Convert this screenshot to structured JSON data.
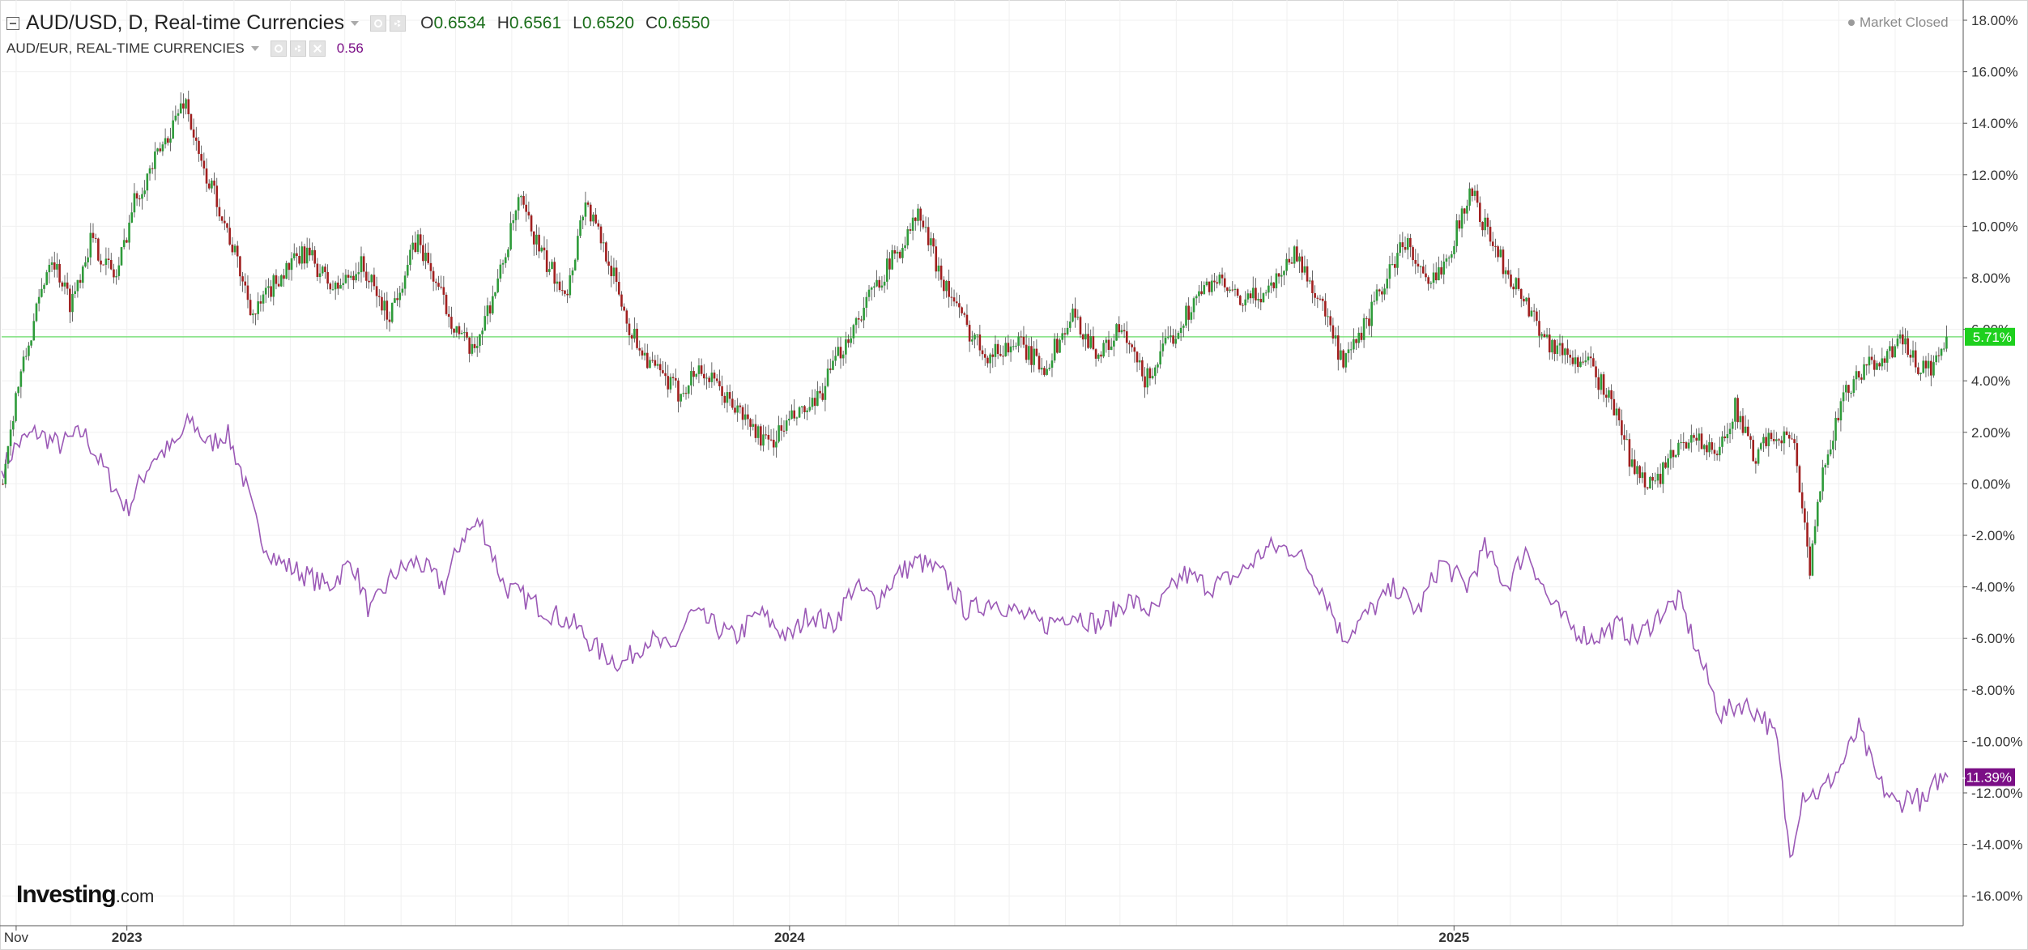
{
  "legend": {
    "main_title": "AUD/USD, D, Real-time Currencies",
    "o_label": "O",
    "o_value": "0.6534",
    "h_label": "H",
    "h_value": "0.6561",
    "l_label": "L",
    "l_value": "0.6520",
    "c_label": "C",
    "c_value": "0.6550",
    "compare_title": "AUD/EUR, REAL-TIME CURRENCIES",
    "compare_value": "0.56"
  },
  "market_status": "Market Closed",
  "logo": {
    "brand": "Investing",
    "domain": ".com"
  },
  "colors": {
    "up": "#2e9b3a",
    "down": "#a11f1f",
    "compare_line": "#9b59b6",
    "ref_line": "#7fe07f",
    "main_badge": "#1ed01e",
    "compare_badge": "#7b0f86",
    "grid": "#f0f0f0"
  },
  "icons": [
    "collapse-icon",
    "eye-icon",
    "gear-icon",
    "close-icon",
    "caret-down-icon",
    "status-dot-icon"
  ],
  "chart_data": {
    "type": "line",
    "x_axis": {
      "labels": [
        "Nov",
        "2023",
        "2024",
        "2025"
      ],
      "range": [
        "2022-10-24",
        "2025-09-30"
      ]
    },
    "y_axis": {
      "unit": "%",
      "min": -16,
      "max": 18,
      "step": 2,
      "tick_labels": [
        "18.00%",
        "16.00%",
        "14.00%",
        "12.00%",
        "10.00%",
        "8.00%",
        "6.00%",
        "4.00%",
        "2.00%",
        "0.00%",
        "-2.00%",
        "-4.00%",
        "-6.00%",
        "-8.00%",
        "-10.00%",
        "-12.00%",
        "-14.00%",
        "-16.00%"
      ]
    },
    "grid": true,
    "series": [
      {
        "name": "AUD/USD",
        "style": "candlestick",
        "last_label": "5.71%",
        "reference_line": 5.71,
        "points": [
          [
            "2022-10-24",
            0.0
          ],
          [
            "2022-11-01",
            3.5
          ],
          [
            "2022-11-10",
            6.0
          ],
          [
            "2022-11-20",
            9.0
          ],
          [
            "2022-12-01",
            7.0
          ],
          [
            "2022-12-12",
            9.5
          ],
          [
            "2022-12-26",
            8.0
          ],
          [
            "2023-01-05",
            11.0
          ],
          [
            "2023-01-20",
            13.0
          ],
          [
            "2023-02-02",
            15.0
          ],
          [
            "2023-02-10",
            12.5
          ],
          [
            "2023-02-20",
            11.0
          ],
          [
            "2023-03-01",
            9.0
          ],
          [
            "2023-03-12",
            6.5
          ],
          [
            "2023-03-25",
            8.0
          ],
          [
            "2023-04-10",
            9.0
          ],
          [
            "2023-04-25",
            7.5
          ],
          [
            "2023-05-10",
            8.5
          ],
          [
            "2023-05-25",
            6.5
          ],
          [
            "2023-06-10",
            9.5
          ],
          [
            "2023-06-28",
            6.5
          ],
          [
            "2023-07-10",
            5.0
          ],
          [
            "2023-07-25",
            8.0
          ],
          [
            "2023-08-05",
            11.0
          ],
          [
            "2023-08-20",
            8.5
          ],
          [
            "2023-09-01",
            7.5
          ],
          [
            "2023-09-10",
            11.0
          ],
          [
            "2023-09-22",
            9.0
          ],
          [
            "2023-10-05",
            6.0
          ],
          [
            "2023-10-18",
            4.5
          ],
          [
            "2023-11-01",
            3.5
          ],
          [
            "2023-11-12",
            4.5
          ],
          [
            "2023-11-25",
            3.5
          ],
          [
            "2023-12-08",
            2.5
          ],
          [
            "2023-12-20",
            1.5
          ],
          [
            "2024-01-02",
            2.5
          ],
          [
            "2024-01-15",
            3.0
          ],
          [
            "2024-01-28",
            5.0
          ],
          [
            "2024-02-08",
            6.5
          ],
          [
            "2024-02-20",
            8.0
          ],
          [
            "2024-03-05",
            9.5
          ],
          [
            "2024-03-12",
            10.5
          ],
          [
            "2024-03-25",
            8.0
          ],
          [
            "2024-04-08",
            6.0
          ],
          [
            "2024-04-20",
            5.0
          ],
          [
            "2024-05-05",
            5.5
          ],
          [
            "2024-05-20",
            4.5
          ],
          [
            "2024-06-05",
            6.5
          ],
          [
            "2024-06-20",
            5.0
          ],
          [
            "2024-07-01",
            6.0
          ],
          [
            "2024-07-15",
            4.0
          ],
          [
            "2024-07-28",
            5.5
          ],
          [
            "2024-08-10",
            7.0
          ],
          [
            "2024-08-22",
            8.0
          ],
          [
            "2024-09-05",
            7.0
          ],
          [
            "2024-09-20",
            7.5
          ],
          [
            "2024-10-05",
            9.0
          ],
          [
            "2024-10-20",
            7.0
          ],
          [
            "2024-11-01",
            4.5
          ],
          [
            "2024-11-12",
            6.0
          ],
          [
            "2024-11-25",
            8.0
          ],
          [
            "2024-12-05",
            9.5
          ],
          [
            "2024-12-18",
            7.5
          ],
          [
            "2025-01-01",
            9.5
          ],
          [
            "2025-01-10",
            11.5
          ],
          [
            "2025-01-18",
            10.0
          ],
          [
            "2025-01-28",
            8.5
          ],
          [
            "2025-02-10",
            7.0
          ],
          [
            "2025-02-22",
            5.5
          ],
          [
            "2025-03-05",
            5.0
          ],
          [
            "2025-03-18",
            4.5
          ],
          [
            "2025-03-30",
            3.0
          ],
          [
            "2025-04-10",
            0.5
          ],
          [
            "2025-04-22",
            0.0
          ],
          [
            "2025-05-01",
            1.0
          ],
          [
            "2025-05-12",
            2.0
          ],
          [
            "2025-05-25",
            1.0
          ],
          [
            "2025-06-05",
            3.0
          ],
          [
            "2025-06-15",
            1.0
          ],
          [
            "2025-06-28",
            2.0
          ],
          [
            "2025-07-08",
            1.5
          ],
          [
            "2025-07-16",
            -3.5
          ],
          [
            "2025-07-24",
            1.0
          ],
          [
            "2025-08-05",
            3.5
          ],
          [
            "2025-08-16",
            4.5
          ],
          [
            "2025-08-26",
            5.0
          ],
          [
            "2025-09-05",
            5.5
          ],
          [
            "2025-09-14",
            4.5
          ],
          [
            "2025-09-22",
            4.5
          ],
          [
            "2025-09-30",
            5.71
          ]
        ]
      },
      {
        "name": "AUD/EUR",
        "style": "line",
        "last_label": "-11.39%",
        "points": [
          [
            "2022-10-24",
            0.5
          ],
          [
            "2022-11-01",
            1.5
          ],
          [
            "2022-11-12",
            2.0
          ],
          [
            "2022-11-25",
            1.5
          ],
          [
            "2022-12-08",
            2.0
          ],
          [
            "2022-12-20",
            0.5
          ],
          [
            "2023-01-01",
            -1.0
          ],
          [
            "2023-01-15",
            1.0
          ],
          [
            "2023-01-28",
            1.5
          ],
          [
            "2023-02-05",
            2.5
          ],
          [
            "2023-02-15",
            1.5
          ],
          [
            "2023-02-25",
            2.0
          ],
          [
            "2023-03-05",
            0.5
          ],
          [
            "2023-03-15",
            -2.0
          ],
          [
            "2023-03-25",
            -3.0
          ],
          [
            "2023-04-08",
            -3.5
          ],
          [
            "2023-04-22",
            -4.0
          ],
          [
            "2023-05-05",
            -3.0
          ],
          [
            "2023-05-15",
            -5.0
          ],
          [
            "2023-05-28",
            -3.5
          ],
          [
            "2023-06-10",
            -3.0
          ],
          [
            "2023-06-25",
            -4.0
          ],
          [
            "2023-07-05",
            -2.0
          ],
          [
            "2023-07-15",
            -1.5
          ],
          [
            "2023-07-28",
            -4.0
          ],
          [
            "2023-08-10",
            -4.5
          ],
          [
            "2023-08-22",
            -5.0
          ],
          [
            "2023-09-05",
            -5.5
          ],
          [
            "2023-09-18",
            -6.5
          ],
          [
            "2023-10-01",
            -7.0
          ],
          [
            "2023-10-15",
            -6.0
          ],
          [
            "2023-10-28",
            -6.5
          ],
          [
            "2023-11-08",
            -5.0
          ],
          [
            "2023-11-20",
            -5.5
          ],
          [
            "2023-12-02",
            -6.0
          ],
          [
            "2023-12-15",
            -5.0
          ],
          [
            "2024-01-01",
            -6.0
          ],
          [
            "2024-01-12",
            -5.0
          ],
          [
            "2024-01-25",
            -5.5
          ],
          [
            "2024-02-05",
            -4.0
          ],
          [
            "2024-02-18",
            -4.5
          ],
          [
            "2024-03-01",
            -3.5
          ],
          [
            "2024-03-12",
            -3.0
          ],
          [
            "2024-03-25",
            -3.5
          ],
          [
            "2024-04-08",
            -5.0
          ],
          [
            "2024-04-22",
            -4.5
          ],
          [
            "2024-05-05",
            -5.0
          ],
          [
            "2024-05-20",
            -5.5
          ],
          [
            "2024-06-05",
            -5.0
          ],
          [
            "2024-06-20",
            -5.5
          ],
          [
            "2024-07-05",
            -4.5
          ],
          [
            "2024-07-20",
            -5.0
          ],
          [
            "2024-08-05",
            -3.5
          ],
          [
            "2024-08-20",
            -4.0
          ],
          [
            "2024-09-05",
            -3.5
          ],
          [
            "2024-09-20",
            -2.5
          ],
          [
            "2024-10-05",
            -2.5
          ],
          [
            "2024-10-20",
            -4.0
          ],
          [
            "2024-11-01",
            -6.0
          ],
          [
            "2024-11-15",
            -5.0
          ],
          [
            "2024-11-30",
            -4.0
          ],
          [
            "2024-12-12",
            -5.0
          ],
          [
            "2024-12-25",
            -3.0
          ],
          [
            "2025-01-08",
            -4.0
          ],
          [
            "2025-01-18",
            -2.5
          ],
          [
            "2025-01-30",
            -4.0
          ],
          [
            "2025-02-10",
            -2.5
          ],
          [
            "2025-02-22",
            -4.5
          ],
          [
            "2025-03-05",
            -5.5
          ],
          [
            "2025-03-18",
            -6.0
          ],
          [
            "2025-04-01",
            -5.5
          ],
          [
            "2025-04-12",
            -6.0
          ],
          [
            "2025-04-25",
            -5.0
          ],
          [
            "2025-05-05",
            -4.5
          ],
          [
            "2025-05-15",
            -6.5
          ],
          [
            "2025-05-28",
            -9.0
          ],
          [
            "2025-06-08",
            -8.5
          ],
          [
            "2025-06-20",
            -9.0
          ],
          [
            "2025-06-28",
            -10.0
          ],
          [
            "2025-07-05",
            -14.5
          ],
          [
            "2025-07-12",
            -12.0
          ],
          [
            "2025-07-22",
            -12.0
          ],
          [
            "2025-08-02",
            -11.0
          ],
          [
            "2025-08-12",
            -9.5
          ],
          [
            "2025-08-22",
            -11.5
          ],
          [
            "2025-09-02",
            -12.5
          ],
          [
            "2025-09-10",
            -12.0
          ],
          [
            "2025-09-18",
            -12.5
          ],
          [
            "2025-09-24",
            -11.5
          ],
          [
            "2025-09-30",
            -11.39
          ]
        ]
      }
    ]
  }
}
